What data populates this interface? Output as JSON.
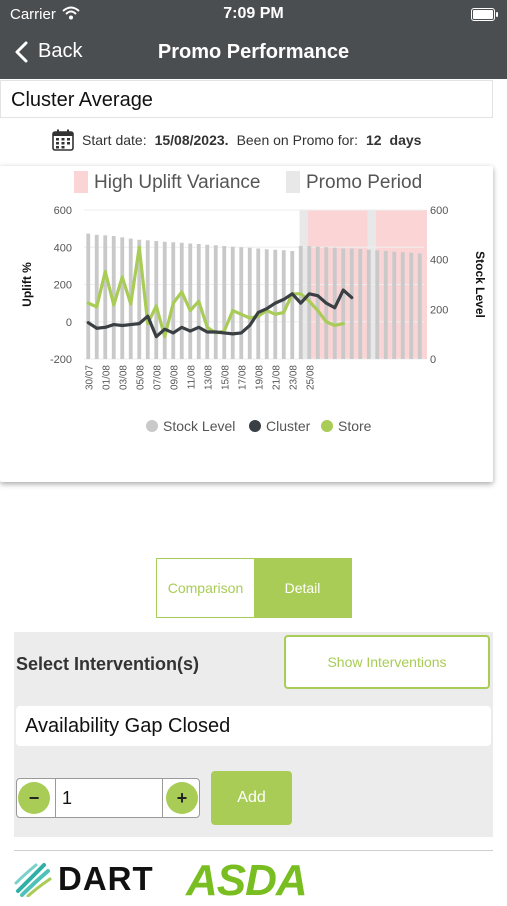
{
  "status_bar": {
    "carrier": "Carrier",
    "time": "7:09 PM"
  },
  "nav": {
    "back_label": "Back",
    "title": "Promo Performance"
  },
  "cluster_name": "Cluster Average",
  "promo_info": {
    "start_label": "Start date:",
    "start_date": "15/08/2023.",
    "been_label": "Been on Promo for:",
    "days_value": "12",
    "days_unit": "days"
  },
  "chart_data": {
    "type": "bar+line",
    "legend_top": [
      "High Uplift Variance",
      "Promo Period"
    ],
    "legend_bottom": [
      "Stock Level",
      "Cluster",
      "Store"
    ],
    "ylabel": "Uplift %",
    "y2label": "Stock Level",
    "ylim": [
      -200,
      600
    ],
    "y2lim": [
      0,
      600
    ],
    "yticks": [
      600,
      400,
      200,
      0,
      -200
    ],
    "y2ticks": [
      600,
      400,
      200,
      0
    ],
    "xtick_labels": [
      "30/07",
      "01/08",
      "03/08",
      "05/08",
      "07/08",
      "09/08",
      "11/08",
      "13/08",
      "15/08",
      "17/08",
      "19/08",
      "21/08",
      "23/08",
      "25/08"
    ],
    "stock_level": [
      505,
      500,
      498,
      495,
      490,
      485,
      480,
      478,
      475,
      472,
      470,
      468,
      465,
      463,
      460,
      458,
      455,
      452,
      450,
      448,
      445,
      442,
      440,
      438,
      435,
      455,
      455,
      452,
      450,
      448,
      445,
      445,
      443,
      440,
      438,
      435,
      432,
      430,
      428,
      425
    ],
    "cluster": [
      -5,
      -35,
      -30,
      -15,
      -20,
      -15,
      -10,
      30,
      -80,
      -40,
      -60,
      -30,
      -50,
      -30,
      -55,
      -55,
      -60,
      -65,
      -60,
      -20,
      50,
      70,
      100,
      120,
      150,
      100,
      150,
      140,
      100,
      75,
      170,
      130
    ],
    "store": [
      100,
      80,
      270,
      90,
      240,
      95,
      400,
      -10,
      85,
      -80,
      100,
      160,
      60,
      110,
      -30,
      -60,
      -50,
      60,
      40,
      20,
      30,
      60,
      40,
      50,
      150,
      150,
      110,
      60,
      0,
      -20,
      -10
    ],
    "promo_period_x": [
      25,
      25
    ],
    "high_uplift_variance_x": [
      [
        26,
        32
      ],
      [
        34,
        39
      ]
    ],
    "colors": {
      "stock": "#c9c9c9",
      "cluster": "#3a3f44",
      "store": "#a8cc55",
      "promo": "#e8e8e8",
      "variance": "#fbd5d5"
    }
  },
  "toggle": {
    "comparison_label": "Comparison",
    "detail_label": "Detail",
    "active": "Detail"
  },
  "intervention": {
    "label": "Select Intervention(s)",
    "show_label": "Show Interventions",
    "selected": "Availability Gap Closed",
    "quantity": "1",
    "minus_icon": "minus-icon",
    "plus_icon": "plus-icon",
    "add_label": "Add"
  },
  "footer": {
    "dart_label": "DART",
    "asda_label": "ASDA"
  }
}
